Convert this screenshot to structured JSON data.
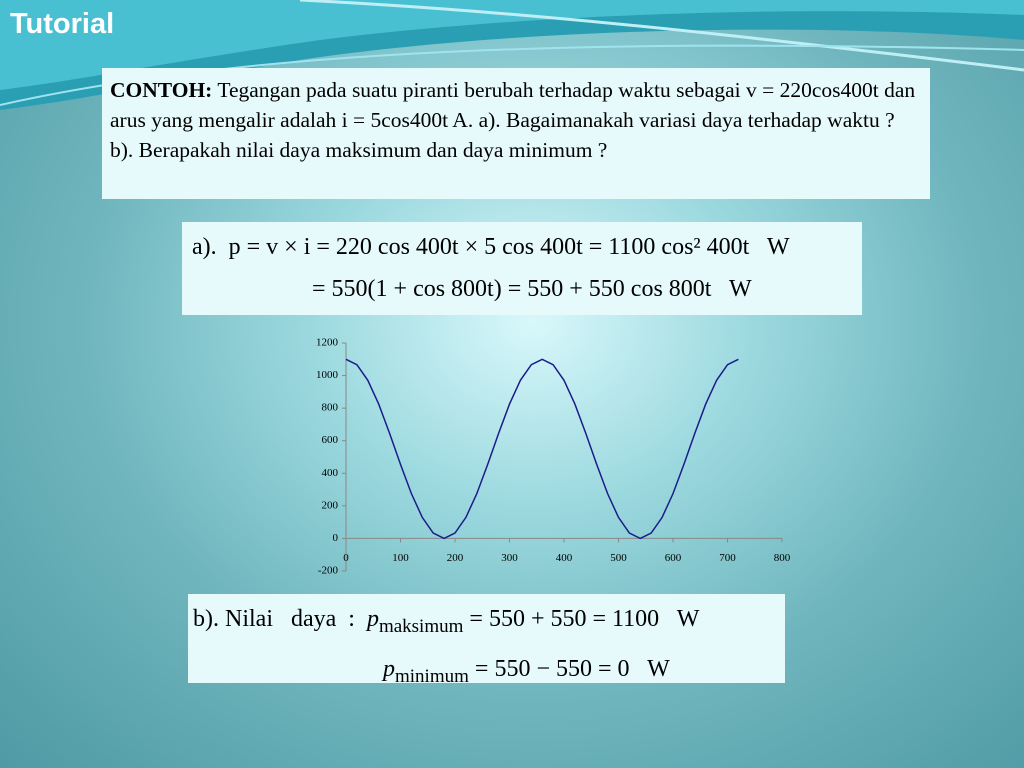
{
  "header": {
    "title": "Tutorial"
  },
  "problem": {
    "label": "CONTOH:",
    "text": "Tegangan pada suatu piranti berubah terhadap waktu sebagai v = 220cos400t dan arus yang mengalir adalah i = 5cos400t A. a). Bagaimanakah variasi daya terhadap waktu ? b). Berapakah nilai daya maksimum dan daya minimum ?"
  },
  "solution_a": {
    "lines": [
      "a).  p = v × i = 220 cos 400t × 5 cos 400t = 1100 cos² 400t   W",
      "= 550(1 + cos 800t) = 550 + 550 cos 800t   W"
    ]
  },
  "chart_data": {
    "type": "line",
    "color": "#1c1c8a",
    "x": [
      0,
      20,
      40,
      60,
      80,
      100,
      120,
      140,
      160,
      180,
      200,
      220,
      240,
      260,
      280,
      300,
      320,
      340,
      360,
      380,
      400,
      420,
      440,
      460,
      480,
      500,
      520,
      540,
      560,
      580,
      600,
      620,
      640,
      660,
      680,
      700,
      720
    ],
    "values": [
      1100,
      1067,
      971,
      825,
      645,
      455,
      275,
      129,
      33,
      0,
      33,
      129,
      275,
      455,
      645,
      825,
      971,
      1067,
      1100,
      1067,
      971,
      825,
      645,
      455,
      275,
      129,
      33,
      0,
      33,
      129,
      275,
      455,
      645,
      825,
      971,
      1067,
      1100
    ],
    "xlim": [
      0,
      800
    ],
    "xticks": [
      0,
      100,
      200,
      300,
      400,
      500,
      600,
      700,
      800
    ],
    "ylim": [
      -200,
      1200
    ],
    "yticks": [
      -200,
      0,
      200,
      400,
      600,
      800,
      1000,
      1200
    ]
  },
  "solution_b": {
    "prefix": "b). Nilai   daya  :",
    "lines": [
      {
        "symbol": "p",
        "subscript": "maksimum",
        "expr": "= 550 + 550 = 1100   W"
      },
      {
        "symbol": "p",
        "subscript": "minimum",
        "expr": "= 550 − 550 = 0   W"
      }
    ]
  }
}
